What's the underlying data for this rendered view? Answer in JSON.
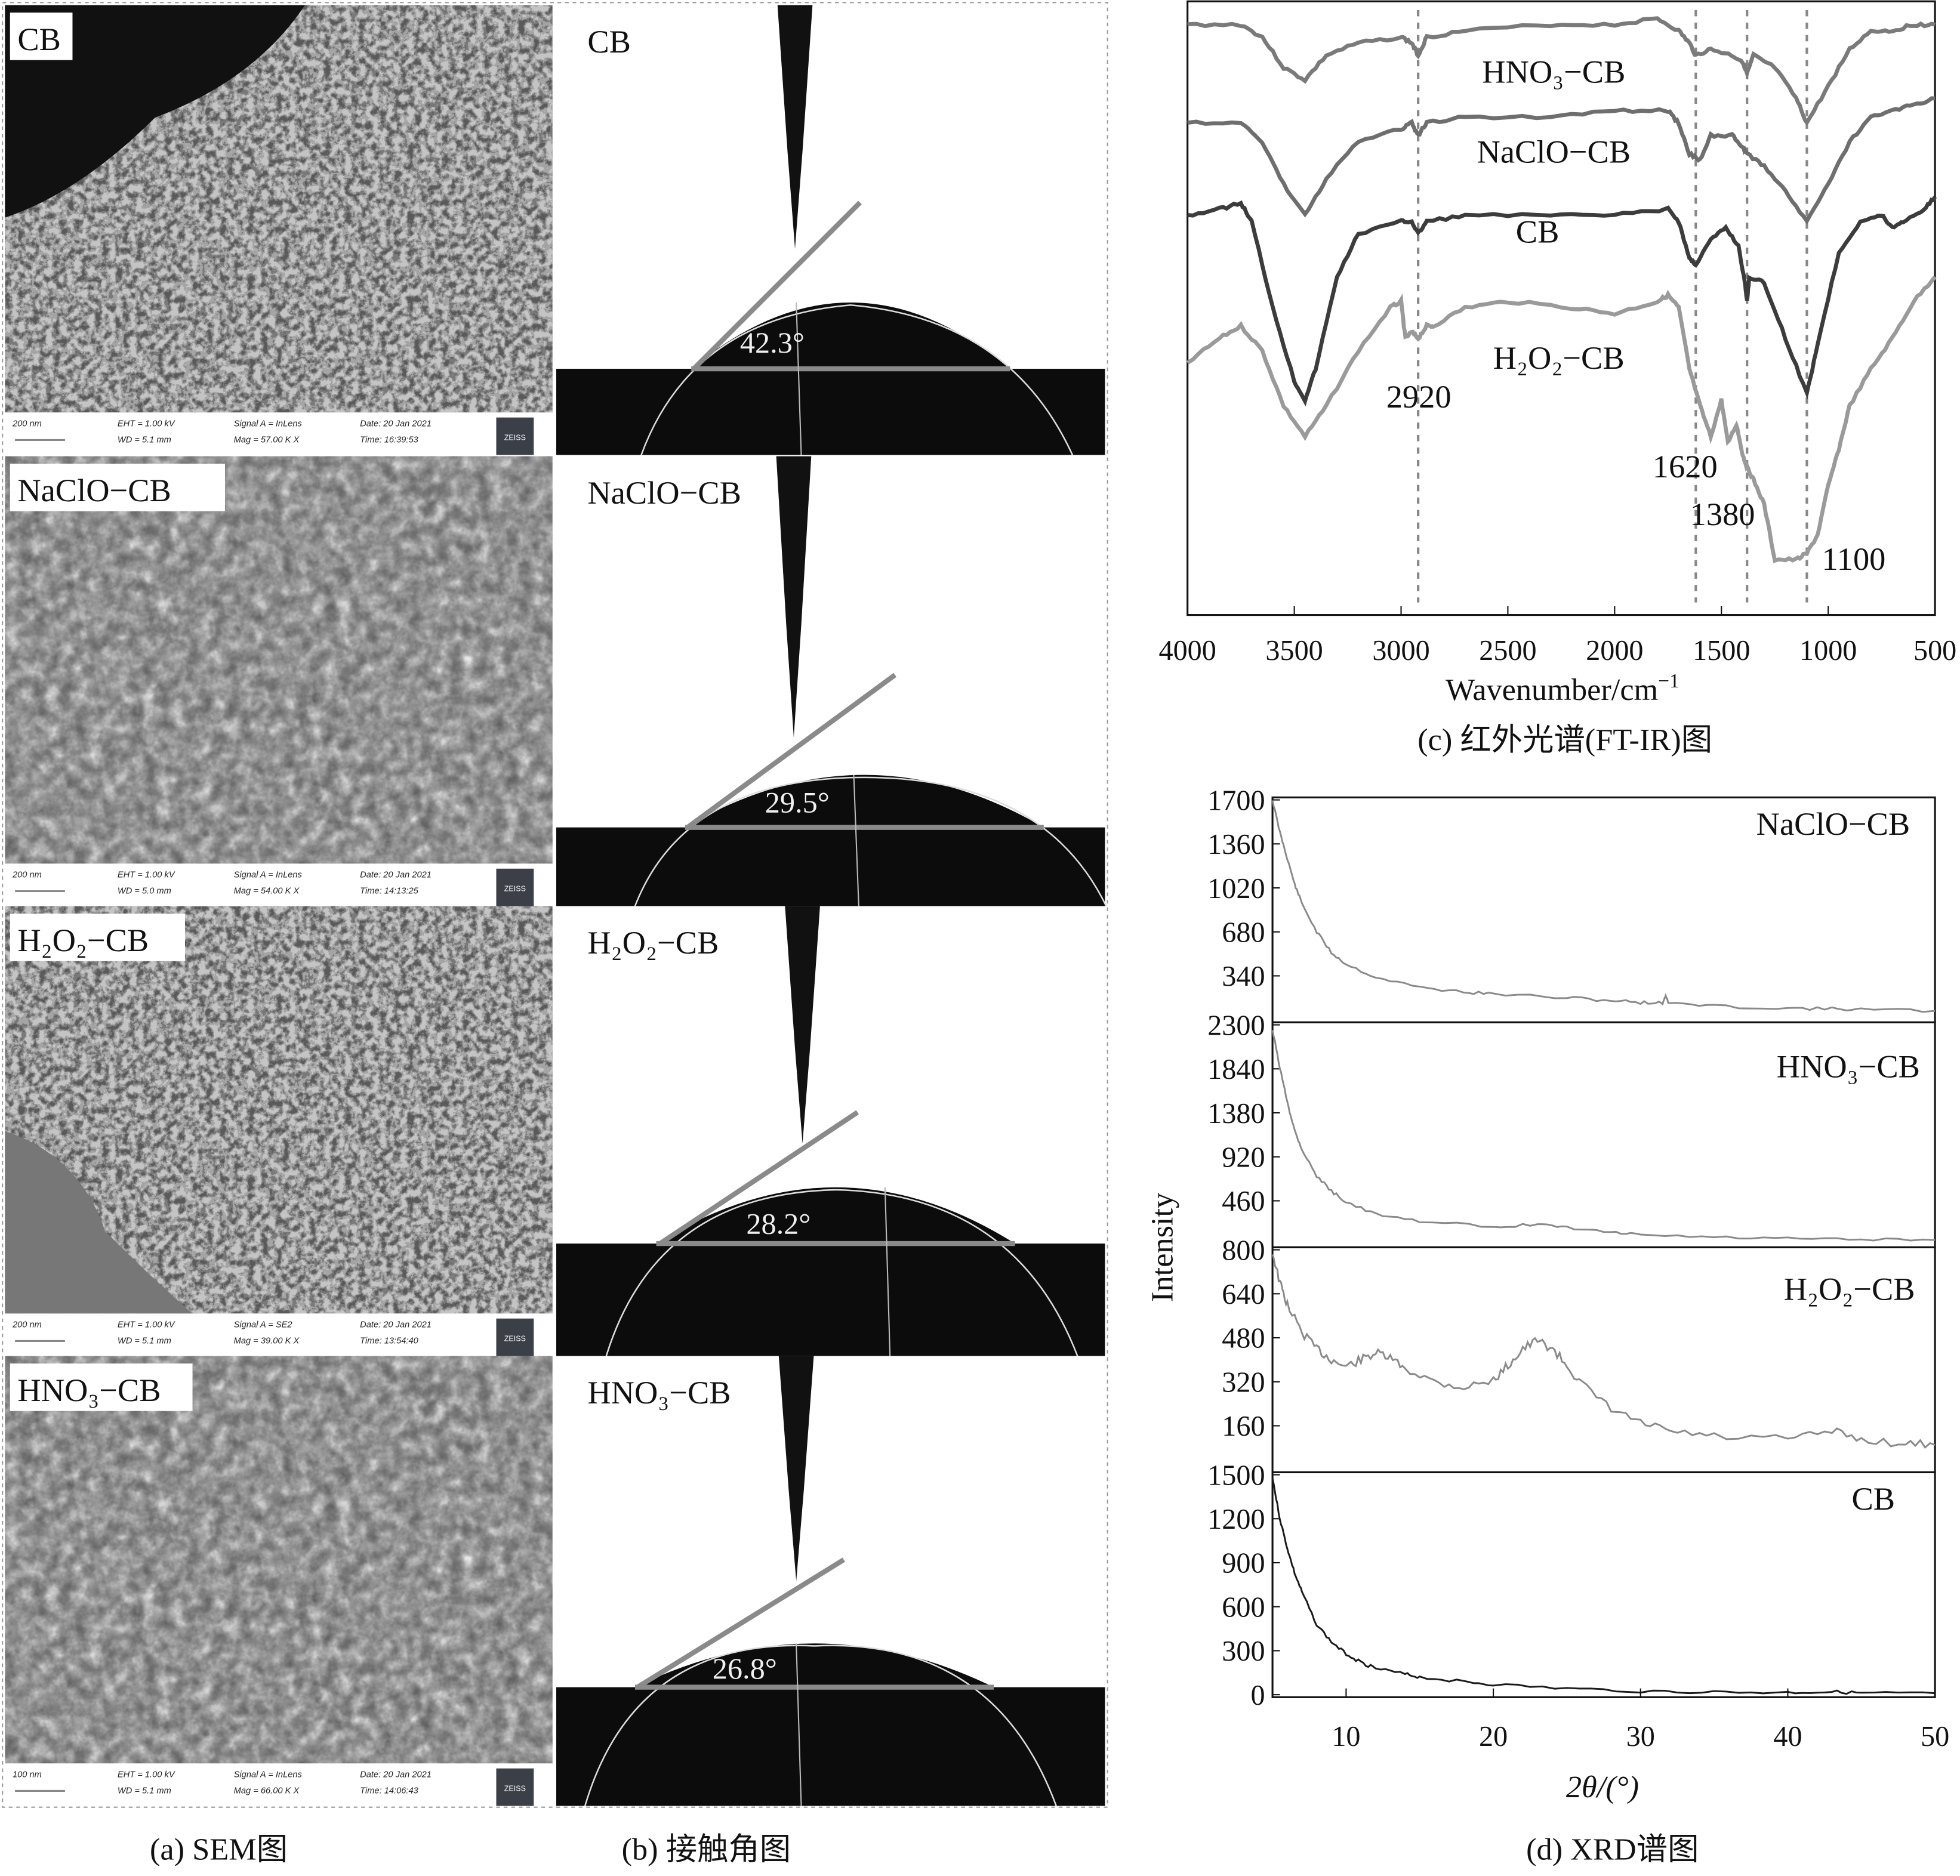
{
  "captions": {
    "a": "(a) SEM图",
    "b": "(b) 接触角图",
    "c": "(c) 红外光谱(FT-IR)图",
    "d": "(d) XRD谱图"
  },
  "sem_panels": [
    {
      "label": "CB",
      "scale": "200 nm",
      "eht": "EHT = 1.00 kV",
      "wd": "WD = 5.1 mm",
      "signal": "Signal A = InLens",
      "mag": "Mag = 57.00 K X",
      "date": "Date: 20 Jan 2021",
      "time": "Time: 16:39:53",
      "logo": "ZEISS"
    },
    {
      "label": "NaClO−CB",
      "scale": "200 nm",
      "eht": "EHT = 1.00 kV",
      "wd": "WD = 5.0 mm",
      "signal": "Signal A = InLens",
      "mag": "Mag = 54.00 K X",
      "date": "Date: 20 Jan 2021",
      "time": "Time: 14:13:25",
      "logo": "ZEISS"
    },
    {
      "label": "H₂O₂−CB",
      "scale": "200 nm",
      "eht": "EHT = 1.00 kV",
      "wd": "WD = 5.1 mm",
      "signal": "Signal A = SE2",
      "mag": "Mag = 39.00 K X",
      "date": "Date: 20 Jan 2021",
      "time": "Time: 13:54:40",
      "logo": "ZEISS"
    },
    {
      "label": "HNO₃−CB",
      "scale": "100 nm",
      "eht": "EHT = 1.00 kV",
      "wd": "WD = 5.1 mm",
      "signal": "Signal A = InLens",
      "mag": "Mag = 66.00 K X",
      "date": "Date: 20 Jan 2021",
      "time": "Time: 14:06:43",
      "logo": "ZEISS"
    }
  ],
  "contact_angle_panels": [
    {
      "label": "CB",
      "angle": "42.3°",
      "angle_value": 42.3
    },
    {
      "label": "NaClO−CB",
      "angle": "29.5°",
      "angle_value": 29.5
    },
    {
      "label": "H₂O₂−CB",
      "angle": "28.2°",
      "angle_value": 28.2
    },
    {
      "label": "HNO₃−CB",
      "angle": "26.8°",
      "angle_value": 26.8
    }
  ],
  "chart_data": [
    {
      "type": "line",
      "title": "",
      "xlabel": "Wavenumber/cm",
      "xlabel_sup": "−1",
      "ylabel": "",
      "xlim": [
        4000,
        500
      ],
      "xticks": [
        "4000",
        "3500",
        "3000",
        "2500",
        "2000",
        "1500",
        "1000",
        "500"
      ],
      "ylim": [
        0,
        100
      ],
      "y_axis_shown": false,
      "grid": false,
      "annotations": [
        "2920",
        "1620",
        "1380",
        "1100"
      ],
      "annotation_x": [
        2920,
        1620,
        1380,
        1100
      ],
      "series": [
        {
          "name": "HNO₃−CB",
          "color": "#7a7a7a",
          "points": [
            [
              4000,
              96
            ],
            [
              3750,
              96
            ],
            [
              3650,
              94
            ],
            [
              3550,
              89
            ],
            [
              3450,
              87
            ],
            [
              3350,
              91
            ],
            [
              3200,
              93
            ],
            [
              3000,
              94
            ],
            [
              2950,
              93
            ],
            [
              2920,
              91
            ],
            [
              2880,
              94
            ],
            [
              2700,
              95
            ],
            [
              2300,
              96
            ],
            [
              2000,
              96
            ],
            [
              1800,
              97
            ],
            [
              1700,
              95
            ],
            [
              1650,
              93
            ],
            [
              1620,
              91
            ],
            [
              1550,
              92
            ],
            [
              1450,
              91
            ],
            [
              1400,
              90
            ],
            [
              1380,
              88
            ],
            [
              1350,
              91
            ],
            [
              1250,
              89
            ],
            [
              1150,
              84
            ],
            [
              1100,
              80
            ],
            [
              1000,
              86
            ],
            [
              900,
              92
            ],
            [
              800,
              95
            ],
            [
              700,
              95
            ],
            [
              600,
              96
            ],
            [
              500,
              96
            ]
          ]
        },
        {
          "name": "NaClO−CB",
          "color": "#6e6e6e",
          "points": [
            [
              4000,
              80
            ],
            [
              3750,
              80
            ],
            [
              3650,
              77
            ],
            [
              3550,
              70
            ],
            [
              3450,
              65
            ],
            [
              3350,
              71
            ],
            [
              3200,
              77
            ],
            [
              3000,
              79
            ],
            [
              2950,
              80
            ],
            [
              2920,
              78
            ],
            [
              2880,
              80
            ],
            [
              2700,
              81
            ],
            [
              2300,
              81
            ],
            [
              2000,
              82
            ],
            [
              1750,
              82
            ],
            [
              1700,
              80
            ],
            [
              1650,
              75
            ],
            [
              1600,
              74
            ],
            [
              1550,
              78
            ],
            [
              1450,
              78
            ],
            [
              1400,
              76
            ],
            [
              1380,
              75
            ],
            [
              1300,
              73
            ],
            [
              1200,
              69
            ],
            [
              1100,
              64
            ],
            [
              1000,
              70
            ],
            [
              900,
              77
            ],
            [
              800,
              81
            ],
            [
              700,
              82
            ],
            [
              600,
              83
            ],
            [
              500,
              84
            ]
          ]
        },
        {
          "name": "CB",
          "color": "#3c3c3c",
          "points": [
            [
              4000,
              65
            ],
            [
              3850,
              66
            ],
            [
              3750,
              67
            ],
            [
              3700,
              64
            ],
            [
              3600,
              50
            ],
            [
              3500,
              38
            ],
            [
              3450,
              35
            ],
            [
              3400,
              40
            ],
            [
              3300,
              55
            ],
            [
              3200,
              62
            ],
            [
              3000,
              64
            ],
            [
              2950,
              64
            ],
            [
              2920,
              62
            ],
            [
              2880,
              64
            ],
            [
              2700,
              65
            ],
            [
              2300,
              65
            ],
            [
              2000,
              65
            ],
            [
              1750,
              66
            ],
            [
              1700,
              64
            ],
            [
              1650,
              58
            ],
            [
              1620,
              57
            ],
            [
              1550,
              61
            ],
            [
              1480,
              63
            ],
            [
              1420,
              60
            ],
            [
              1390,
              54
            ],
            [
              1380,
              51
            ],
            [
              1370,
              55
            ],
            [
              1300,
              54
            ],
            [
              1200,
              45
            ],
            [
              1100,
              36
            ],
            [
              1050,
              44
            ],
            [
              950,
              59
            ],
            [
              850,
              64
            ],
            [
              750,
              65
            ],
            [
              700,
              63
            ],
            [
              650,
              64
            ],
            [
              550,
              66
            ],
            [
              500,
              68
            ]
          ]
        },
        {
          "name": "H₂O₂−CB",
          "color": "#9a9a9a",
          "points": [
            [
              4000,
              41
            ],
            [
              3850,
              45
            ],
            [
              3750,
              47
            ],
            [
              3650,
              43
            ],
            [
              3550,
              34
            ],
            [
              3450,
              29
            ],
            [
              3350,
              34
            ],
            [
              3200,
              43
            ],
            [
              3050,
              50
            ],
            [
              3000,
              51
            ],
            [
              2980,
              45
            ],
            [
              2950,
              46
            ],
            [
              2920,
              45
            ],
            [
              2880,
              47
            ],
            [
              2850,
              47
            ],
            [
              2700,
              50
            ],
            [
              2500,
              51
            ],
            [
              2200,
              50
            ],
            [
              2000,
              49
            ],
            [
              1800,
              51
            ],
            [
              1750,
              52
            ],
            [
              1700,
              50
            ],
            [
              1650,
              40
            ],
            [
              1600,
              34
            ],
            [
              1550,
              29
            ],
            [
              1500,
              35
            ],
            [
              1470,
              28
            ],
            [
              1430,
              31
            ],
            [
              1400,
              26
            ],
            [
              1380,
              24
            ],
            [
              1350,
              22
            ],
            [
              1300,
              18
            ],
            [
              1250,
              9
            ],
            [
              1150,
              9
            ],
            [
              1100,
              10
            ],
            [
              1050,
              13
            ],
            [
              1000,
              21
            ],
            [
              950,
              27
            ],
            [
              900,
              34
            ],
            [
              800,
              40
            ],
            [
              700,
              45
            ],
            [
              600,
              51
            ],
            [
              500,
              55
            ]
          ]
        }
      ]
    },
    {
      "type": "line",
      "title": "",
      "xlabel": "2θ/(°)",
      "ylabel": "Intensity",
      "xlim": [
        5,
        50
      ],
      "xticks": [
        "10",
        "20",
        "30",
        "40",
        "50"
      ],
      "grid": false,
      "panels": [
        {
          "name": "NaClO−CB",
          "color": "#8a8a8a",
          "ylim": [
            0,
            1700
          ],
          "yticks": [
            "1700",
            "1360",
            "1020",
            "680",
            "340"
          ],
          "points": [
            [
              5,
              1700
            ],
            [
              5.5,
              1450
            ],
            [
              6,
              1250
            ],
            [
              6.5,
              1050
            ],
            [
              7,
              900
            ],
            [
              8,
              680
            ],
            [
              9,
              520
            ],
            [
              10,
              430
            ],
            [
              12,
              330
            ],
            [
              15,
              250
            ],
            [
              18,
              215
            ],
            [
              20,
              200
            ],
            [
              25,
              170
            ],
            [
              28,
              150
            ],
            [
              30,
              135
            ],
            [
              31.5,
              130
            ],
            [
              31.7,
              190
            ],
            [
              31.9,
              130
            ],
            [
              35,
              105
            ],
            [
              40,
              90
            ],
            [
              43,
              85
            ],
            [
              45,
              80
            ],
            [
              50,
              70
            ]
          ]
        },
        {
          "name": "HNO₃−CB",
          "color": "#8a8a8a",
          "ylim": [
            0,
            2300
          ],
          "yticks": [
            "2300",
            "1840",
            "1380",
            "920",
            "460"
          ],
          "points": [
            [
              5,
              2250
            ],
            [
              5.5,
              1850
            ],
            [
              6,
              1500
            ],
            [
              6.5,
              1200
            ],
            [
              7,
              1000
            ],
            [
              8,
              720
            ],
            [
              9,
              560
            ],
            [
              10,
              450
            ],
            [
              12,
              320
            ],
            [
              15,
              240
            ],
            [
              20,
              190
            ],
            [
              23,
              210
            ],
            [
              25,
              180
            ],
            [
              28,
              130
            ],
            [
              30,
              105
            ],
            [
              35,
              80
            ],
            [
              40,
              65
            ],
            [
              45,
              55
            ],
            [
              50,
              50
            ]
          ]
        },
        {
          "name": "H₂O₂−CB",
          "color": "#8a8a8a",
          "ylim": [
            0,
            800
          ],
          "yticks": [
            "800",
            "640",
            "480",
            "320",
            "160"
          ],
          "points": [
            [
              5,
              790
            ],
            [
              5.5,
              680
            ],
            [
              6,
              600
            ],
            [
              7,
              500
            ],
            [
              8,
              440
            ],
            [
              9,
              400
            ],
            [
              10,
              375
            ],
            [
              11,
              400
            ],
            [
              12,
              425
            ],
            [
              13,
              405
            ],
            [
              14,
              370
            ],
            [
              16,
              320
            ],
            [
              18,
              300
            ],
            [
              20,
              325
            ],
            [
              21,
              380
            ],
            [
              22,
              440
            ],
            [
              23,
              470
            ],
            [
              24,
              440
            ],
            [
              25,
              380
            ],
            [
              26,
              310
            ],
            [
              28,
              220
            ],
            [
              30,
              170
            ],
            [
              32,
              140
            ],
            [
              35,
              120
            ],
            [
              40,
              110
            ],
            [
              43,
              140
            ],
            [
              45,
              110
            ],
            [
              48,
              95
            ],
            [
              50,
              90
            ]
          ]
        },
        {
          "name": "CB",
          "color": "#1a1a1a",
          "ylim": [
            0,
            1500
          ],
          "yticks": [
            "1500",
            "1200",
            "900",
            "600",
            "300",
            "0"
          ],
          "points": [
            [
              5,
              1480
            ],
            [
              5.5,
              1200
            ],
            [
              6,
              1000
            ],
            [
              6.5,
              830
            ],
            [
              7,
              700
            ],
            [
              8,
              480
            ],
            [
              9,
              360
            ],
            [
              10,
              280
            ],
            [
              11,
              220
            ],
            [
              12,
              180
            ],
            [
              14,
              140
            ],
            [
              15,
              120
            ],
            [
              18,
              90
            ],
            [
              20,
              70
            ],
            [
              25,
              42
            ],
            [
              30,
              25
            ],
            [
              35,
              18
            ],
            [
              40,
              15
            ],
            [
              43,
              20
            ],
            [
              45,
              12
            ],
            [
              50,
              10
            ]
          ]
        }
      ]
    }
  ]
}
